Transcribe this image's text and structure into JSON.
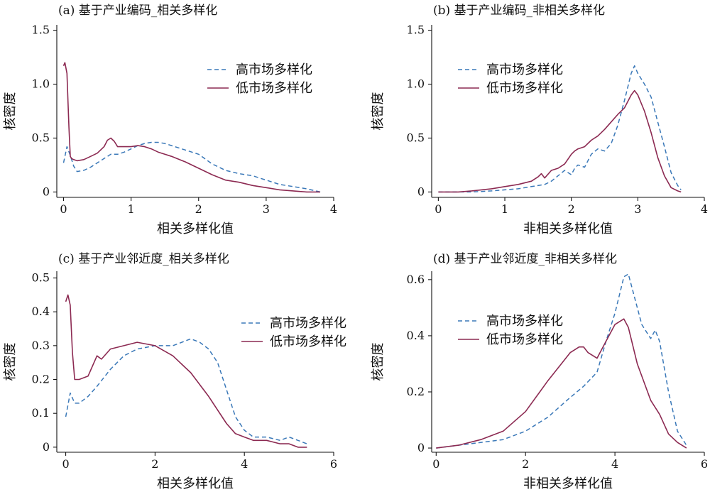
{
  "colors": {
    "high": "#3a78b8",
    "low": "#8c2a52"
  },
  "chart_data": [
    {
      "type": "line",
      "title": "(a) 基于产业编码_相关多样化",
      "xlabel": "相关多样化值",
      "ylabel": "核密度",
      "xlim": [
        -0.1,
        4.0
      ],
      "ylim": [
        -0.05,
        1.55
      ],
      "xticks": [
        0,
        1,
        2,
        3,
        4
      ],
      "xtick_labels": [
        "0",
        "1",
        "2",
        "3",
        "4"
      ],
      "yticks": [
        0,
        0.5,
        1.0,
        1.5
      ],
      "ytick_labels": [
        "0",
        "0.5",
        "1.0",
        "1.5"
      ],
      "legend_position": "top-right",
      "series": [
        {
          "name": "高市场多样化",
          "style": "dashed",
          "x": [
            0,
            0.05,
            0.1,
            0.15,
            0.2,
            0.3,
            0.4,
            0.5,
            0.6,
            0.7,
            0.8,
            0.9,
            1.0,
            1.1,
            1.2,
            1.3,
            1.4,
            1.5,
            1.6,
            1.8,
            2.0,
            2.2,
            2.4,
            2.6,
            2.8,
            3.0,
            3.2,
            3.4,
            3.6,
            3.8
          ],
          "y": [
            0.27,
            0.42,
            0.34,
            0.24,
            0.19,
            0.2,
            0.23,
            0.27,
            0.31,
            0.35,
            0.35,
            0.37,
            0.4,
            0.43,
            0.45,
            0.46,
            0.46,
            0.45,
            0.43,
            0.39,
            0.35,
            0.26,
            0.2,
            0.17,
            0.15,
            0.11,
            0.07,
            0.05,
            0.03,
            0.0
          ]
        },
        {
          "name": "低市场多样化",
          "style": "solid",
          "x": [
            0,
            0.02,
            0.05,
            0.08,
            0.1,
            0.12,
            0.15,
            0.2,
            0.3,
            0.4,
            0.5,
            0.6,
            0.65,
            0.7,
            0.75,
            0.8,
            0.9,
            1.0,
            1.1,
            1.2,
            1.3,
            1.4,
            1.5,
            1.6,
            1.8,
            2.0,
            2.2,
            2.4,
            2.6,
            2.8,
            3.0,
            3.2,
            3.4,
            3.6,
            3.8
          ],
          "y": [
            1.17,
            1.2,
            1.1,
            0.6,
            0.33,
            0.31,
            0.3,
            0.29,
            0.3,
            0.33,
            0.36,
            0.42,
            0.48,
            0.5,
            0.47,
            0.42,
            0.42,
            0.42,
            0.43,
            0.42,
            0.4,
            0.37,
            0.35,
            0.33,
            0.28,
            0.22,
            0.16,
            0.11,
            0.09,
            0.06,
            0.04,
            0.02,
            0.01,
            0.0,
            0.0
          ]
        }
      ]
    },
    {
      "type": "line",
      "title": "(b) 基于产业编码_非相关多样化",
      "xlabel": "非相关多样化值",
      "ylabel": "核密度",
      "xlim": [
        -0.1,
        4.0
      ],
      "ylim": [
        -0.05,
        1.55
      ],
      "xticks": [
        0,
        1,
        2,
        3,
        4
      ],
      "xtick_labels": [
        "0",
        "1",
        "2",
        "3",
        "4"
      ],
      "yticks": [
        0,
        0.5,
        1.0,
        1.5
      ],
      "ytick_labels": [
        "0",
        "0.5",
        "1.0",
        "1.5"
      ],
      "legend_position": "top-left",
      "series": [
        {
          "name": "高市场多样化",
          "style": "dashed",
          "x": [
            0,
            0.3,
            0.5,
            0.8,
            1.0,
            1.2,
            1.4,
            1.6,
            1.7,
            1.8,
            1.9,
            2.0,
            2.05,
            2.1,
            2.2,
            2.3,
            2.4,
            2.5,
            2.6,
            2.7,
            2.8,
            2.9,
            2.95,
            3.0,
            3.1,
            3.2,
            3.3,
            3.4,
            3.5,
            3.6,
            3.65
          ],
          "y": [
            0.0,
            0.0,
            0.0,
            0.01,
            0.02,
            0.03,
            0.05,
            0.07,
            0.1,
            0.15,
            0.2,
            0.16,
            0.22,
            0.25,
            0.23,
            0.35,
            0.4,
            0.38,
            0.45,
            0.62,
            0.85,
            1.1,
            1.17,
            1.1,
            1.0,
            0.88,
            0.65,
            0.42,
            0.18,
            0.06,
            0.02
          ]
        },
        {
          "name": "低市场多样化",
          "style": "solid",
          "x": [
            0,
            0.3,
            0.5,
            0.8,
            1.0,
            1.2,
            1.4,
            1.5,
            1.55,
            1.6,
            1.7,
            1.8,
            1.9,
            2.0,
            2.05,
            2.1,
            2.2,
            2.3,
            2.4,
            2.5,
            2.6,
            2.7,
            2.8,
            2.9,
            2.95,
            3.0,
            3.1,
            3.2,
            3.3,
            3.4,
            3.5,
            3.6,
            3.65
          ],
          "y": [
            0.0,
            0.0,
            0.01,
            0.03,
            0.05,
            0.07,
            0.1,
            0.14,
            0.17,
            0.13,
            0.2,
            0.22,
            0.26,
            0.35,
            0.38,
            0.4,
            0.42,
            0.48,
            0.52,
            0.58,
            0.65,
            0.72,
            0.78,
            0.9,
            0.94,
            0.9,
            0.75,
            0.55,
            0.32,
            0.15,
            0.04,
            0.01,
            0.0
          ]
        }
      ]
    },
    {
      "type": "line",
      "title": "(c) 基于产业邻近度_相关多样化",
      "xlabel": "相关多样化值",
      "ylabel": "核密度",
      "xlim": [
        -0.2,
        6.0
      ],
      "ylim": [
        -0.015,
        0.52
      ],
      "xticks": [
        0,
        2,
        4,
        6
      ],
      "xtick_labels": [
        "0",
        "2",
        "4",
        "6"
      ],
      "yticks": [
        0,
        0.1,
        0.2,
        0.3,
        0.4,
        0.5
      ],
      "ytick_labels": [
        "0",
        "0.1",
        "0.2",
        "0.3",
        "0.4",
        "0.5"
      ],
      "legend_position": "top-right",
      "series": [
        {
          "name": "高市场多样化",
          "style": "dashed",
          "x": [
            0,
            0.1,
            0.2,
            0.3,
            0.5,
            0.7,
            1.0,
            1.3,
            1.6,
            2.0,
            2.4,
            2.8,
            3.0,
            3.2,
            3.4,
            3.6,
            3.8,
            4.0,
            4.2,
            4.5,
            4.8,
            5.0,
            5.2,
            5.4
          ],
          "y": [
            0.09,
            0.16,
            0.13,
            0.13,
            0.15,
            0.18,
            0.23,
            0.27,
            0.29,
            0.3,
            0.3,
            0.32,
            0.31,
            0.29,
            0.25,
            0.17,
            0.09,
            0.05,
            0.03,
            0.03,
            0.02,
            0.03,
            0.02,
            0.01
          ]
        },
        {
          "name": "低市场多样化",
          "style": "solid",
          "x": [
            0,
            0.05,
            0.1,
            0.15,
            0.2,
            0.3,
            0.5,
            0.7,
            0.8,
            1.0,
            1.3,
            1.6,
            2.0,
            2.4,
            2.8,
            3.2,
            3.6,
            3.8,
            4.0,
            4.2,
            4.5,
            4.8,
            5.0,
            5.2,
            5.4
          ],
          "y": [
            0.43,
            0.45,
            0.42,
            0.28,
            0.2,
            0.2,
            0.21,
            0.27,
            0.26,
            0.29,
            0.3,
            0.31,
            0.3,
            0.27,
            0.22,
            0.15,
            0.07,
            0.04,
            0.03,
            0.02,
            0.02,
            0.01,
            0.01,
            0.0,
            0.0
          ]
        }
      ]
    },
    {
      "type": "line",
      "title": "(d) 基于产业邻近度_非相关多样化",
      "xlabel": "非相关多样化值",
      "ylabel": "核密度",
      "xlim": [
        -0.1,
        6.0
      ],
      "ylim": [
        -0.015,
        0.63
      ],
      "xticks": [
        0,
        2,
        4,
        6
      ],
      "xtick_labels": [
        "0",
        "2",
        "4",
        "6"
      ],
      "yticks": [
        0,
        0.2,
        0.4,
        0.6
      ],
      "ytick_labels": [
        "0",
        "0.2",
        "0.4",
        "0.6"
      ],
      "legend_position": "top-left",
      "series": [
        {
          "name": "高市场多样化",
          "style": "dashed",
          "x": [
            0,
            0.5,
            1.0,
            1.5,
            2.0,
            2.5,
            3.0,
            3.3,
            3.6,
            3.8,
            4.0,
            4.2,
            4.3,
            4.4,
            4.6,
            4.8,
            4.9,
            5.0,
            5.2,
            5.4,
            5.6
          ],
          "y": [
            0.0,
            0.01,
            0.02,
            0.03,
            0.06,
            0.11,
            0.18,
            0.22,
            0.27,
            0.38,
            0.48,
            0.61,
            0.62,
            0.56,
            0.44,
            0.39,
            0.42,
            0.38,
            0.2,
            0.06,
            0.01
          ]
        },
        {
          "name": "低市场多样化",
          "style": "solid",
          "x": [
            0,
            0.5,
            1.0,
            1.5,
            2.0,
            2.5,
            2.8,
            3.0,
            3.2,
            3.3,
            3.4,
            3.6,
            3.8,
            4.0,
            4.2,
            4.3,
            4.5,
            4.8,
            5.0,
            5.2,
            5.4,
            5.6
          ],
          "y": [
            0.0,
            0.01,
            0.03,
            0.06,
            0.13,
            0.24,
            0.3,
            0.34,
            0.36,
            0.36,
            0.34,
            0.32,
            0.38,
            0.44,
            0.46,
            0.43,
            0.3,
            0.17,
            0.12,
            0.05,
            0.02,
            0.0
          ]
        }
      ]
    }
  ]
}
